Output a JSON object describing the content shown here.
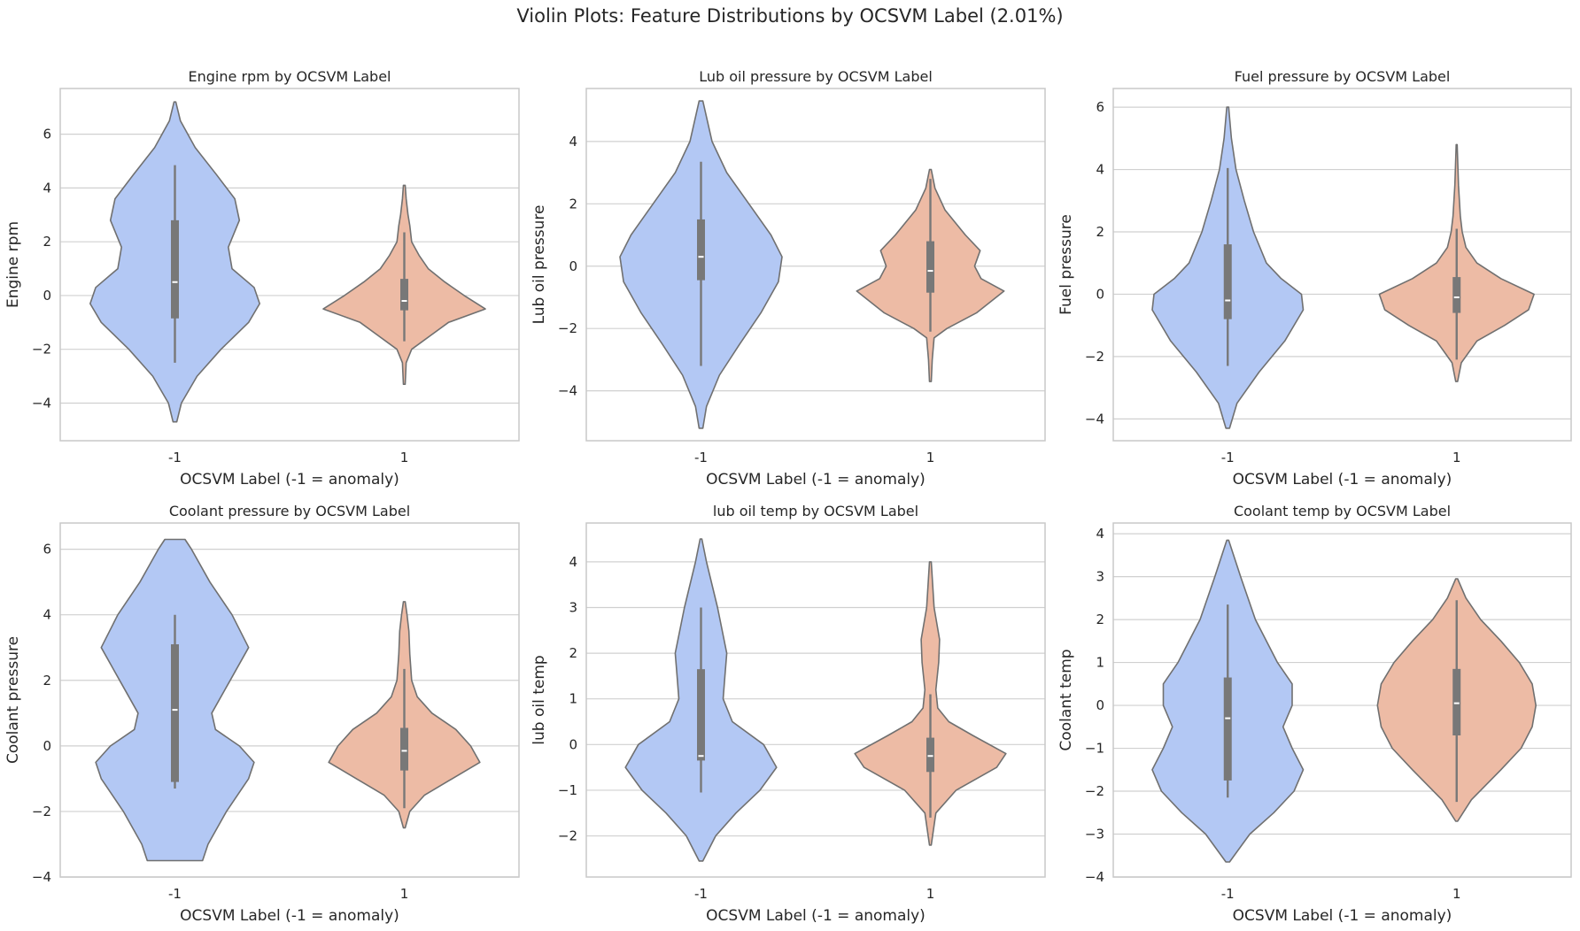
{
  "figure": {
    "title": "Violin Plots: Feature Distributions by OCSVM Label (2.01%)"
  },
  "colors": {
    "anomaly": "#b3c8f4",
    "normal": "#edbba5",
    "outline": "#707070",
    "box": "#787878",
    "grid": "#d0d0d0",
    "frame": "#c8c8c8"
  },
  "chart_data": [
    {
      "type": "violin",
      "title": "Engine rpm by OCSVM Label",
      "xlabel": "OCSVM Label (-1 = anomaly)",
      "ylabel": "Engine rpm",
      "categories": [
        "-1",
        "1"
      ],
      "yticks": [
        -4,
        -2,
        0,
        2,
        4,
        6
      ],
      "ylim": [
        -5.4,
        7.7
      ],
      "violins": [
        {
          "label": "-1",
          "profile": [
            [
              -4.7,
              0.02
            ],
            [
              -4.0,
              0.07
            ],
            [
              -3.0,
              0.24
            ],
            [
              -2.0,
              0.5
            ],
            [
              -1.0,
              0.8
            ],
            [
              -0.3,
              0.92
            ],
            [
              0.3,
              0.86
            ],
            [
              1.0,
              0.62
            ],
            [
              1.8,
              0.58
            ],
            [
              2.8,
              0.7
            ],
            [
              3.6,
              0.65
            ],
            [
              4.5,
              0.45
            ],
            [
              5.5,
              0.22
            ],
            [
              6.5,
              0.06
            ],
            [
              7.2,
              0.01
            ]
          ],
          "box": {
            "whisker_low": -2.5,
            "q1": -0.85,
            "median": 0.5,
            "q3": 2.8,
            "whisker_high": 4.85
          }
        },
        {
          "label": "1",
          "profile": [
            [
              -3.3,
              0.01
            ],
            [
              -2.5,
              0.02
            ],
            [
              -2.0,
              0.08
            ],
            [
              -1.5,
              0.28
            ],
            [
              -1.0,
              0.48
            ],
            [
              -0.5,
              0.88
            ],
            [
              0.0,
              0.65
            ],
            [
              0.5,
              0.44
            ],
            [
              1.0,
              0.26
            ],
            [
              1.5,
              0.16
            ],
            [
              2.0,
              0.08
            ],
            [
              2.6,
              0.06
            ],
            [
              3.0,
              0.04
            ],
            [
              3.6,
              0.02
            ],
            [
              4.1,
              0.01
            ]
          ],
          "box": {
            "whisker_low": -1.7,
            "q1": -0.55,
            "median": -0.2,
            "q3": 0.62,
            "whisker_high": 2.35
          }
        }
      ]
    },
    {
      "type": "violin",
      "title": "Lub oil pressure by OCSVM Label",
      "xlabel": "OCSVM Label (-1 = anomaly)",
      "ylabel": "Lub oil pressure",
      "categories": [
        "-1",
        "1"
      ],
      "yticks": [
        -4,
        -2,
        0,
        2,
        4
      ],
      "ylim": [
        -5.6,
        5.7
      ],
      "violins": [
        {
          "label": "-1",
          "profile": [
            [
              -5.2,
              0.02
            ],
            [
              -4.5,
              0.06
            ],
            [
              -3.5,
              0.2
            ],
            [
              -2.5,
              0.42
            ],
            [
              -1.5,
              0.65
            ],
            [
              -0.5,
              0.84
            ],
            [
              0.3,
              0.88
            ],
            [
              1.0,
              0.76
            ],
            [
              2.0,
              0.52
            ],
            [
              3.0,
              0.28
            ],
            [
              4.0,
              0.12
            ],
            [
              5.3,
              0.02
            ]
          ],
          "box": {
            "whisker_low": -3.2,
            "q1": -0.45,
            "median": 0.3,
            "q3": 1.5,
            "whisker_high": 3.35
          }
        },
        {
          "label": "1",
          "profile": [
            [
              -3.7,
              0.01
            ],
            [
              -3.0,
              0.02
            ],
            [
              -2.3,
              0.04
            ],
            [
              -2.0,
              0.18
            ],
            [
              -1.5,
              0.5
            ],
            [
              -0.8,
              0.8
            ],
            [
              -0.4,
              0.55
            ],
            [
              0.0,
              0.48
            ],
            [
              0.5,
              0.54
            ],
            [
              1.0,
              0.38
            ],
            [
              1.8,
              0.16
            ],
            [
              2.5,
              0.05
            ],
            [
              3.1,
              0.01
            ]
          ],
          "box": {
            "whisker_low": -2.1,
            "q1": -0.85,
            "median": -0.15,
            "q3": 0.8,
            "whisker_high": 2.8
          }
        }
      ]
    },
    {
      "type": "violin",
      "title": "Fuel pressure by OCSVM Label",
      "xlabel": "OCSVM Label (-1 = anomaly)",
      "ylabel": "Fuel pressure",
      "categories": [
        "-1",
        "1"
      ],
      "yticks": [
        -4,
        -2,
        0,
        2,
        4,
        6
      ],
      "ylim": [
        -4.7,
        6.6
      ],
      "violins": [
        {
          "label": "-1",
          "profile": [
            [
              -4.3,
              0.02
            ],
            [
              -3.5,
              0.1
            ],
            [
              -2.5,
              0.34
            ],
            [
              -1.5,
              0.62
            ],
            [
              -0.5,
              0.82
            ],
            [
              0.0,
              0.8
            ],
            [
              0.5,
              0.58
            ],
            [
              1.0,
              0.42
            ],
            [
              2.0,
              0.28
            ],
            [
              3.0,
              0.18
            ],
            [
              4.0,
              0.09
            ],
            [
              5.0,
              0.04
            ],
            [
              6.0,
              0.01
            ]
          ],
          "box": {
            "whisker_low": -2.3,
            "q1": -0.8,
            "median": -0.2,
            "q3": 1.6,
            "whisker_high": 4.05
          }
        },
        {
          "label": "1",
          "profile": [
            [
              -2.8,
              0.01
            ],
            [
              -2.2,
              0.05
            ],
            [
              -1.5,
              0.22
            ],
            [
              -1.0,
              0.52
            ],
            [
              -0.5,
              0.78
            ],
            [
              0.0,
              0.84
            ],
            [
              0.5,
              0.48
            ],
            [
              1.0,
              0.22
            ],
            [
              1.5,
              0.1
            ],
            [
              2.0,
              0.06
            ],
            [
              2.5,
              0.04
            ],
            [
              3.5,
              0.02
            ],
            [
              4.8,
              0.005
            ]
          ],
          "box": {
            "whisker_low": -2.1,
            "q1": -0.6,
            "median": -0.1,
            "q3": 0.55,
            "whisker_high": 2.1
          }
        }
      ]
    },
    {
      "type": "violin",
      "title": "Coolant pressure by OCSVM Label",
      "xlabel": "OCSVM Label (-1 = anomaly)",
      "ylabel": "Coolant pressure",
      "categories": [
        "-1",
        "1"
      ],
      "yticks": [
        -4,
        -2,
        0,
        2,
        4,
        6
      ],
      "ylim": [
        -4.0,
        6.8
      ],
      "violins": [
        {
          "label": "-1",
          "profile": [
            [
              -3.5,
              0.3
            ],
            [
              -3.0,
              0.36
            ],
            [
              -2.0,
              0.56
            ],
            [
              -1.0,
              0.8
            ],
            [
              -0.5,
              0.86
            ],
            [
              0.0,
              0.7
            ],
            [
              0.5,
              0.44
            ],
            [
              1.0,
              0.4
            ],
            [
              2.0,
              0.6
            ],
            [
              3.0,
              0.8
            ],
            [
              4.0,
              0.62
            ],
            [
              5.0,
              0.38
            ],
            [
              6.0,
              0.18
            ],
            [
              6.3,
              0.11
            ]
          ],
          "box": {
            "whisker_low": -1.3,
            "q1": -1.1,
            "median": 1.1,
            "q3": 3.1,
            "whisker_high": 4.0
          }
        },
        {
          "label": "1",
          "profile": [
            [
              -2.5,
              0.01
            ],
            [
              -2.0,
              0.06
            ],
            [
              -1.5,
              0.22
            ],
            [
              -1.0,
              0.52
            ],
            [
              -0.5,
              0.82
            ],
            [
              0.0,
              0.72
            ],
            [
              0.5,
              0.56
            ],
            [
              1.0,
              0.3
            ],
            [
              1.5,
              0.14
            ],
            [
              2.0,
              0.08
            ],
            [
              2.8,
              0.06
            ],
            [
              3.5,
              0.05
            ],
            [
              4.0,
              0.03
            ],
            [
              4.4,
              0.01
            ]
          ],
          "box": {
            "whisker_low": -1.9,
            "q1": -0.75,
            "median": -0.15,
            "q3": 0.55,
            "whisker_high": 2.35
          }
        }
      ]
    },
    {
      "type": "violin",
      "title": "lub oil temp by OCSVM Label",
      "xlabel": "OCSVM Label (-1 = anomaly)",
      "ylabel": "lub oil temp",
      "categories": [
        "-1",
        "1"
      ],
      "yticks": [
        -2,
        -1,
        0,
        1,
        2,
        3,
        4
      ],
      "ylim": [
        -2.9,
        4.85
      ],
      "violins": [
        {
          "label": "-1",
          "profile": [
            [
              -2.55,
              0.02
            ],
            [
              -2.0,
              0.16
            ],
            [
              -1.5,
              0.38
            ],
            [
              -1.0,
              0.64
            ],
            [
              -0.5,
              0.82
            ],
            [
              0.0,
              0.68
            ],
            [
              0.5,
              0.34
            ],
            [
              1.0,
              0.24
            ],
            [
              1.5,
              0.26
            ],
            [
              2.0,
              0.28
            ],
            [
              3.0,
              0.18
            ],
            [
              4.0,
              0.06
            ],
            [
              4.5,
              0.01
            ]
          ],
          "box": {
            "whisker_low": -1.05,
            "q1": -0.35,
            "median": -0.25,
            "q3": 1.65,
            "whisker_high": 3.0
          }
        },
        {
          "label": "1",
          "profile": [
            [
              -2.2,
              0.01
            ],
            [
              -1.5,
              0.06
            ],
            [
              -1.0,
              0.28
            ],
            [
              -0.5,
              0.72
            ],
            [
              -0.2,
              0.82
            ],
            [
              0.2,
              0.46
            ],
            [
              0.5,
              0.2
            ],
            [
              0.8,
              0.08
            ],
            [
              1.2,
              0.06
            ],
            [
              1.8,
              0.09
            ],
            [
              2.3,
              0.1
            ],
            [
              3.0,
              0.04
            ],
            [
              4.0,
              0.01
            ]
          ],
          "box": {
            "whisker_low": -1.6,
            "q1": -0.6,
            "median": -0.25,
            "q3": 0.15,
            "whisker_high": 1.1
          }
        }
      ]
    },
    {
      "type": "violin",
      "title": "Coolant temp by OCSVM Label",
      "xlabel": "OCSVM Label (-1 = anomaly)",
      "ylabel": "Coolant temp",
      "categories": [
        "-1",
        "1"
      ],
      "yticks": [
        -4,
        -3,
        -2,
        -1,
        0,
        1,
        2,
        3,
        4
      ],
      "ylim": [
        -4.0,
        4.25
      ],
      "violins": [
        {
          "label": "-1",
          "profile": [
            [
              -3.65,
              0.02
            ],
            [
              -3.0,
              0.24
            ],
            [
              -2.5,
              0.5
            ],
            [
              -2.0,
              0.72
            ],
            [
              -1.5,
              0.82
            ],
            [
              -1.0,
              0.7
            ],
            [
              -0.5,
              0.6
            ],
            [
              0.0,
              0.7
            ],
            [
              0.5,
              0.7
            ],
            [
              1.0,
              0.54
            ],
            [
              2.0,
              0.3
            ],
            [
              3.0,
              0.14
            ],
            [
              3.85,
              0.01
            ]
          ],
          "box": {
            "whisker_low": -2.15,
            "q1": -1.75,
            "median": -0.3,
            "q3": 0.65,
            "whisker_high": 2.35
          }
        },
        {
          "label": "1",
          "profile": [
            [
              -2.7,
              0.01
            ],
            [
              -2.2,
              0.16
            ],
            [
              -1.5,
              0.48
            ],
            [
              -1.0,
              0.7
            ],
            [
              -0.5,
              0.82
            ],
            [
              0.0,
              0.86
            ],
            [
              0.5,
              0.82
            ],
            [
              1.0,
              0.68
            ],
            [
              1.5,
              0.48
            ],
            [
              2.0,
              0.26
            ],
            [
              2.5,
              0.1
            ],
            [
              2.95,
              0.01
            ]
          ],
          "box": {
            "whisker_low": -2.25,
            "q1": -0.7,
            "median": 0.05,
            "q3": 0.85,
            "whisker_high": 2.45
          }
        }
      ]
    }
  ]
}
